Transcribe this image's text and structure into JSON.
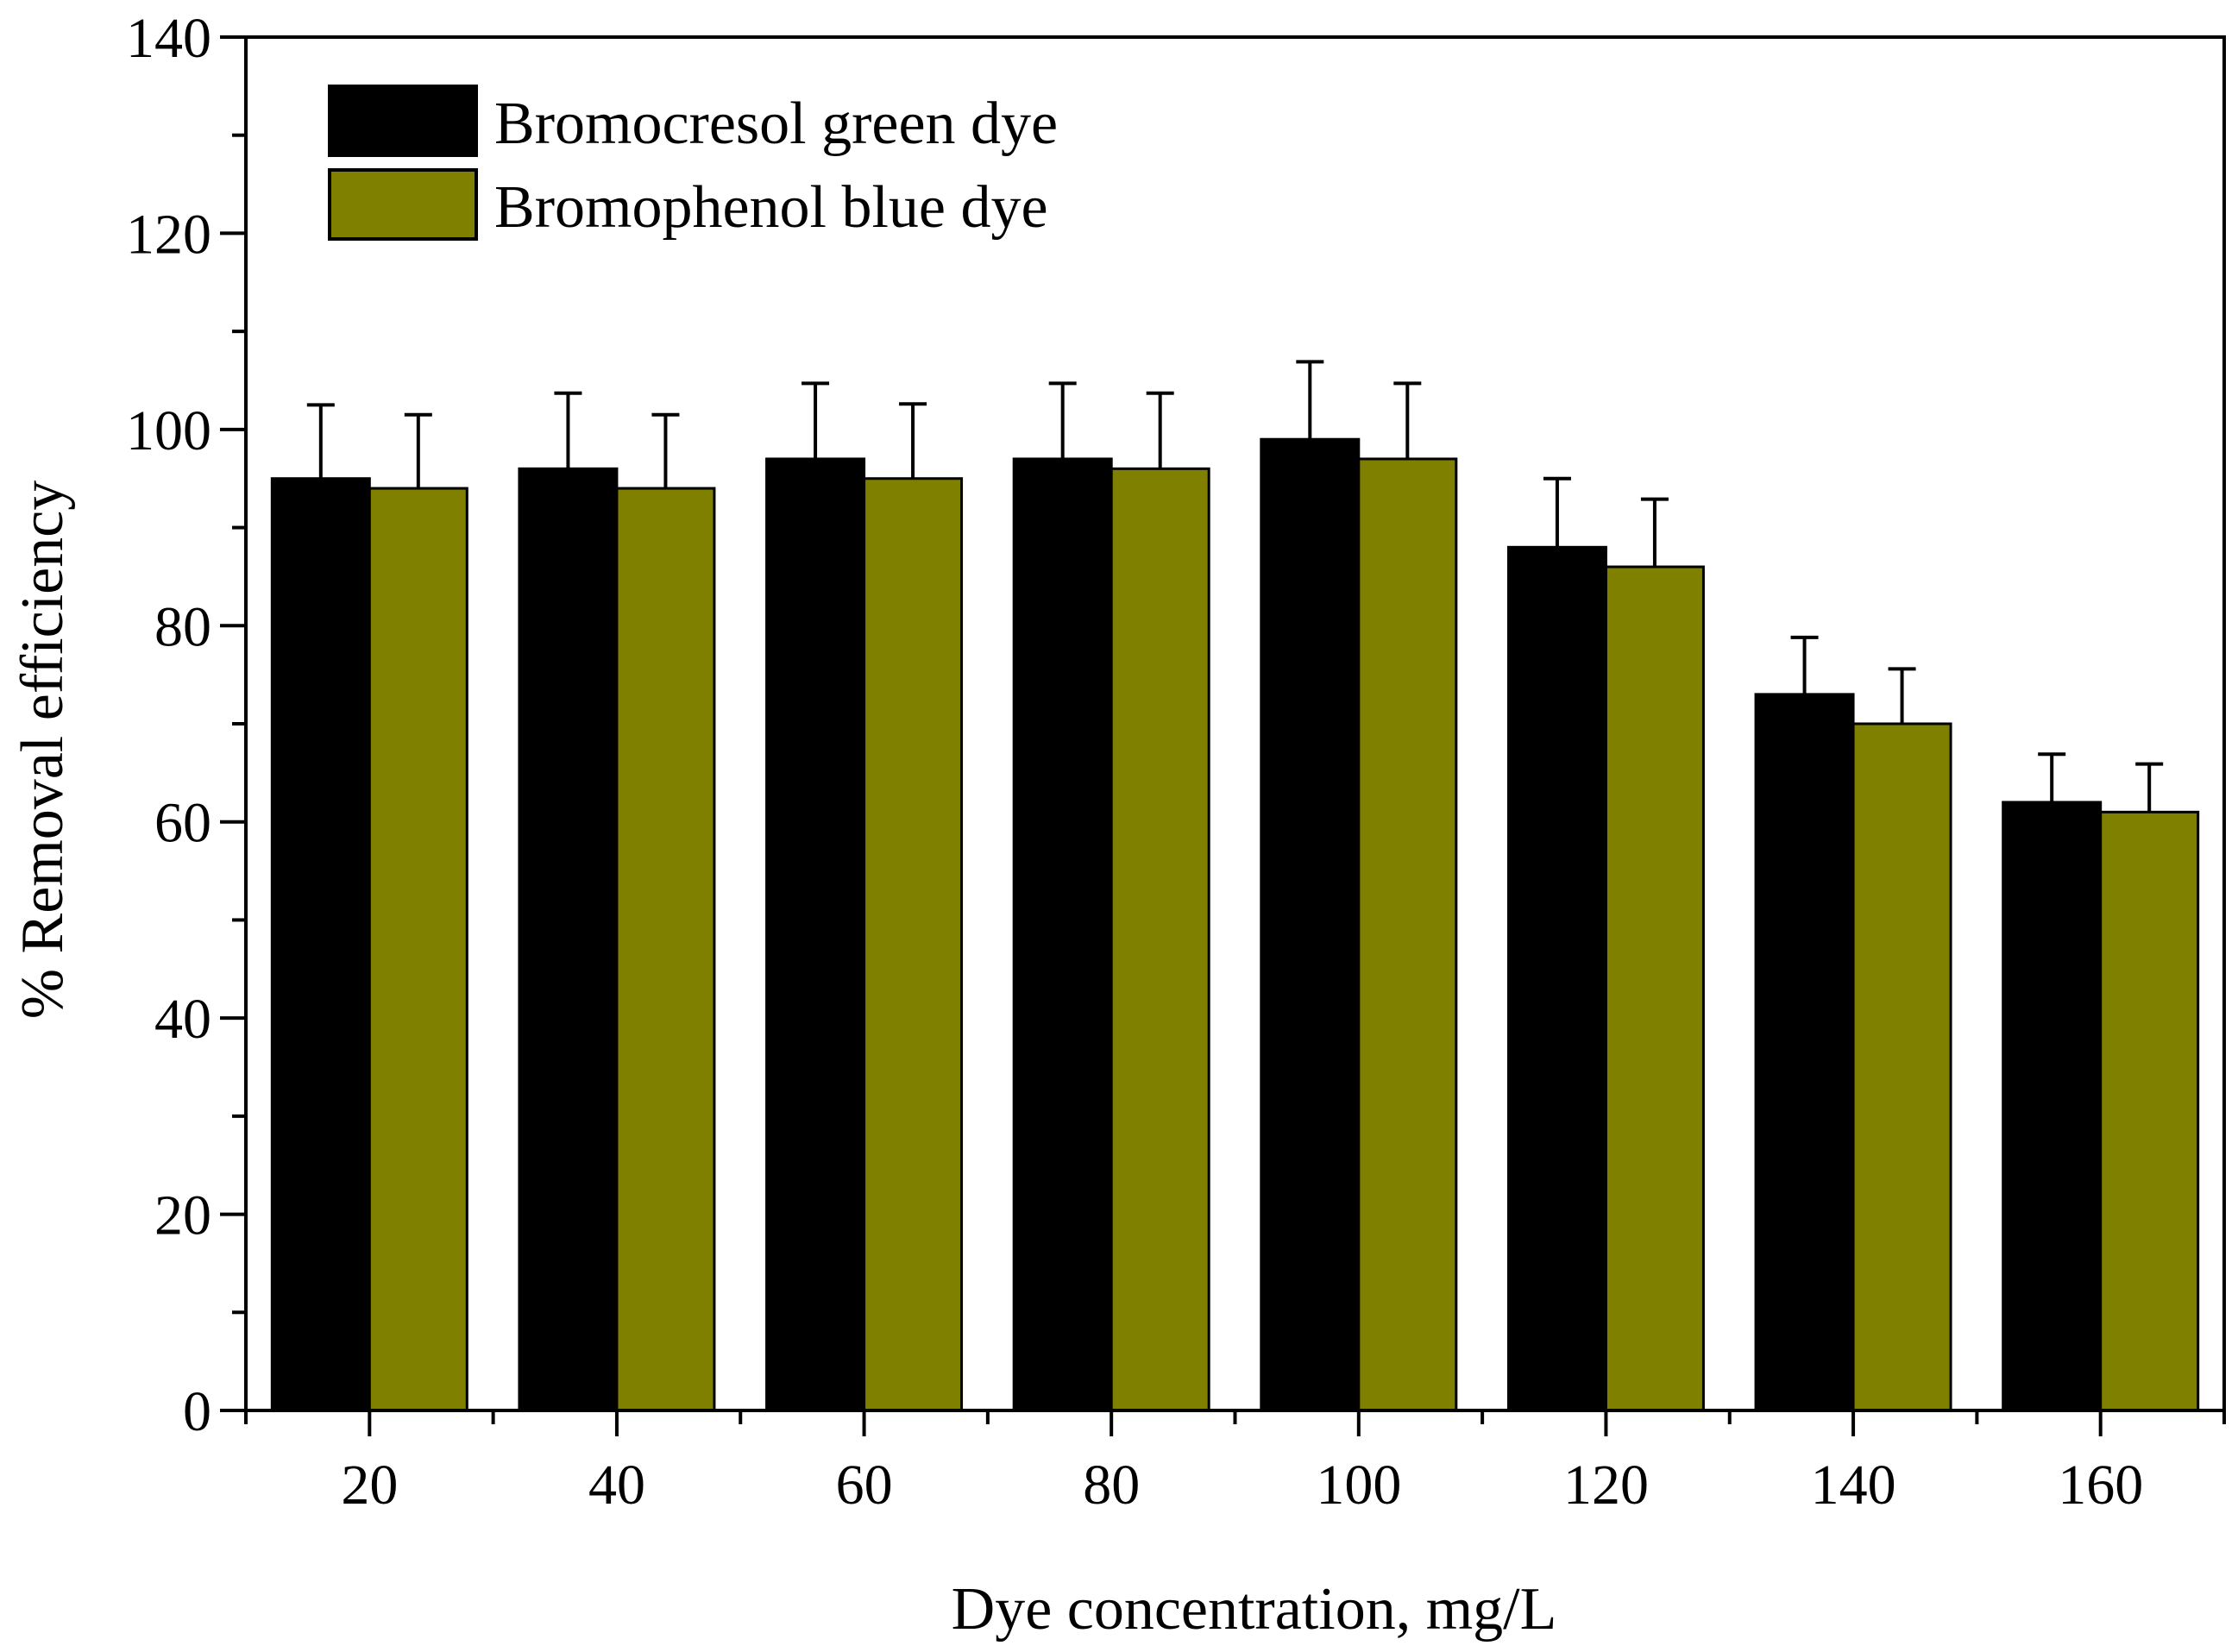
{
  "chart_data": {
    "type": "bar",
    "title": "",
    "xlabel": "Dye concentration, mg/L",
    "ylabel": "% Removal efficiency",
    "categories": [
      "20",
      "40",
      "60",
      "80",
      "100",
      "120",
      "140",
      "160"
    ],
    "ylim": [
      0,
      140
    ],
    "yticks": [
      0,
      20,
      40,
      60,
      80,
      100,
      120,
      140
    ],
    "grid": false,
    "legend_position": "top-left",
    "series": [
      {
        "name": "Bromocresol green dye",
        "color": "#000000",
        "values": [
          95,
          96,
          97,
          97,
          99,
          88,
          73,
          62
        ],
        "errors": [
          7.5,
          7.7,
          7.7,
          7.7,
          7.9,
          7,
          5.8,
          4.9
        ]
      },
      {
        "name": "Bromophenol blue dye",
        "color": "#7f7f00",
        "values": [
          94,
          94,
          95,
          96,
          97,
          86,
          70,
          61
        ],
        "errors": [
          7.5,
          7.5,
          7.6,
          7.7,
          7.7,
          6.9,
          5.6,
          4.9
        ]
      }
    ]
  }
}
